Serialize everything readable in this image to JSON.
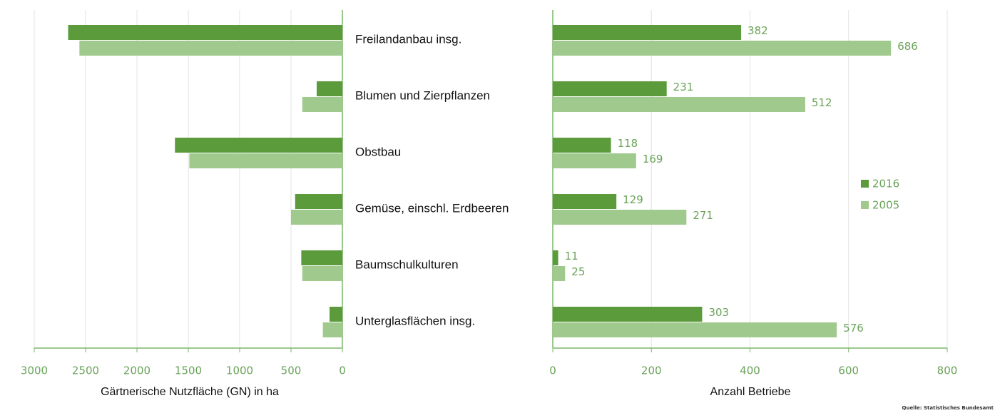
{
  "chart_data": [
    {
      "type": "barh",
      "xlabel": "Gärtnerische Nutzfläche (GN) in ha",
      "categories": [
        "Freilandanbau insg.",
        "Blumen und Zierpflanzen",
        "Obstbau",
        "Gemüse, einschl. Erdbeeren",
        "Baumschulkulturen",
        "Unterglasflächen insg."
      ],
      "series": [
        {
          "name": "2016",
          "color": "#5b9b3c",
          "values": [
            2670,
            250,
            1630,
            460,
            400,
            125
          ]
        },
        {
          "name": "2005",
          "color": "#a0c98d",
          "values": [
            2560,
            390,
            1490,
            500,
            390,
            190
          ]
        }
      ],
      "xlim": [
        3000,
        0
      ],
      "xticks": [
        3000,
        2500,
        2000,
        1500,
        1000,
        500,
        0
      ],
      "grid": true
    },
    {
      "type": "barh",
      "xlabel": "Anzahl Betriebe",
      "series": [
        {
          "name": "2016",
          "color": "#5b9b3c",
          "values": [
            382,
            231,
            118,
            129,
            11,
            303
          ]
        },
        {
          "name": "2005",
          "color": "#a0c98d",
          "values": [
            686,
            512,
            169,
            271,
            25,
            576
          ]
        }
      ],
      "xlim": [
        0,
        800
      ],
      "xticks": [
        0,
        200,
        400,
        600,
        800
      ],
      "grid": true,
      "legend": "right"
    }
  ],
  "source": "Quelle: Statistisches Bundesamt"
}
